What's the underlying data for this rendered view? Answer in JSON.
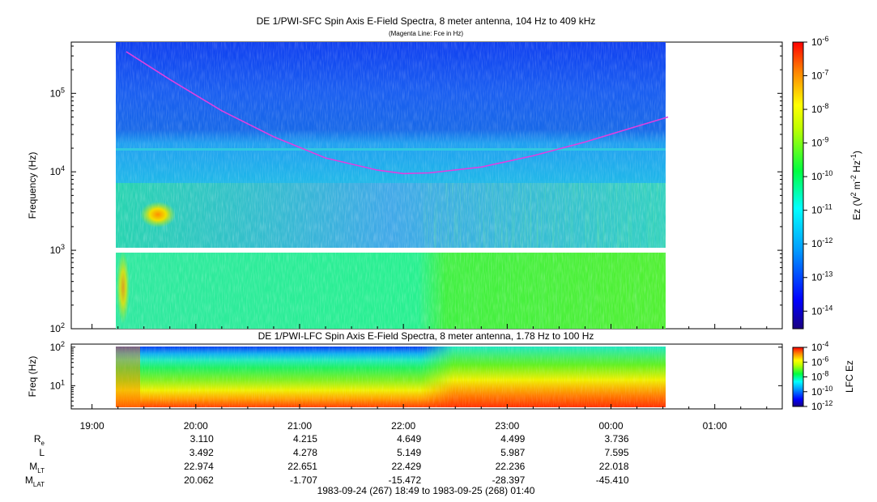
{
  "chart_data": [
    {
      "type": "heatmap",
      "title": "DE 1/PWI-SFC  Spin Axis E-Field Spectra, 8 meter antenna, 104 Hz to 409 kHz",
      "subtitle": "(Magenta Line: Fce in Hz)",
      "ylabel": "Frequency (Hz)",
      "yscale": "log",
      "ylim": [
        100,
        450000
      ],
      "yticks": [
        {
          "value": 100,
          "base": "10",
          "exp": "2"
        },
        {
          "value": 1000,
          "base": "10",
          "exp": "3"
        },
        {
          "value": 10000,
          "base": "10",
          "exp": "4"
        },
        {
          "value": 100000,
          "base": "10",
          "exp": "5"
        }
      ],
      "colorbar": {
        "label_parts": [
          "Ez (V",
          "2",
          " m",
          "-2",
          " Hz",
          "-1",
          ")"
        ],
        "scale": "log",
        "range": [
          3e-15,
          1e-06
        ],
        "ticks": [
          {
            "value": 1e-06,
            "base": "10",
            "exp": "-6"
          },
          {
            "value": 1e-07,
            "base": "10",
            "exp": "-7"
          },
          {
            "value": 1e-08,
            "base": "10",
            "exp": "-8"
          },
          {
            "value": 1e-09,
            "base": "10",
            "exp": "-9"
          },
          {
            "value": 1e-10,
            "base": "10",
            "exp": "-10"
          },
          {
            "value": 1e-11,
            "base": "10",
            "exp": "-11"
          },
          {
            "value": 1e-12,
            "base": "10",
            "exp": "-12"
          },
          {
            "value": 1e-13,
            "base": "10",
            "exp": "-13"
          },
          {
            "value": 1e-14,
            "base": "10",
            "exp": "-14"
          }
        ]
      },
      "data_coverage_hours": [
        19.33,
        24.55
      ],
      "series": [
        {
          "name": "Fce",
          "color": "#e040e0",
          "x_hours": [
            19.33,
            19.75,
            20.25,
            20.75,
            21.25,
            21.75,
            22.0,
            22.25,
            22.75,
            23.25,
            23.75,
            24.25,
            24.55
          ],
          "y": [
            340000,
            150000,
            60000,
            28000,
            15000,
            10500,
            9500,
            9700,
            11500,
            16000,
            24000,
            38000,
            50000
          ]
        }
      ]
    },
    {
      "type": "heatmap",
      "title": "DE 1/PWI-LFC  Spin Axis E-Field Spectra, 8 meter antenna, 1.78 Hz to 100 Hz",
      "ylabel": "Freq (Hz)",
      "yscale": "log",
      "ylim": [
        2.5,
        120
      ],
      "yticks": [
        {
          "value": 10,
          "base": "10",
          "exp": "1"
        },
        {
          "value": 100,
          "base": "10",
          "exp": "2"
        }
      ],
      "colorbar": {
        "label": "LFC Ez",
        "scale": "log",
        "range": [
          1e-12,
          0.0001
        ],
        "ticks": [
          {
            "value": 0.0001,
            "base": "10",
            "exp": "-4"
          },
          {
            "value": 1e-06,
            "base": "10",
            "exp": "-6"
          },
          {
            "value": 1e-08,
            "base": "10",
            "exp": "-8"
          },
          {
            "value": 1e-10,
            "base": "10",
            "exp": "-10"
          },
          {
            "value": 1e-12,
            "base": "10",
            "exp": "-12"
          }
        ]
      },
      "data_coverage_hours": [
        19.33,
        24.55
      ]
    }
  ],
  "time_axis": {
    "range_hours": [
      18.8,
      25.65
    ],
    "ticks": [
      {
        "hour": 19,
        "label": "19:00"
      },
      {
        "hour": 20,
        "label": "20:00"
      },
      {
        "hour": 21,
        "label": "21:00"
      },
      {
        "hour": 22,
        "label": "22:00"
      },
      {
        "hour": 23,
        "label": "23:00"
      },
      {
        "hour": 24,
        "label": "00:00"
      },
      {
        "hour": 25,
        "label": "01:00"
      }
    ],
    "range_label": "1983-09-24 (267) 18:49 to 1983-09-25 (268) 01:40"
  },
  "ephemeris": {
    "hours": [
      20,
      21,
      22,
      23,
      24
    ],
    "rows": [
      {
        "label_main": "R",
        "label_sub": "e",
        "values": [
          "3.110",
          "4.215",
          "4.649",
          "4.499",
          "3.736"
        ]
      },
      {
        "label_main": "L",
        "label_sub": "",
        "values": [
          "3.492",
          "4.278",
          "5.149",
          "5.987",
          "7.595"
        ]
      },
      {
        "label_main": "M",
        "label_sub": "LT",
        "values": [
          "22.974",
          "22.651",
          "22.429",
          "22.236",
          "22.018"
        ]
      },
      {
        "label_main": "M",
        "label_sub": "LAT",
        "values": [
          "20.062",
          "-1.707",
          "-15.472",
          "-28.397",
          "-45.410"
        ]
      }
    ]
  }
}
